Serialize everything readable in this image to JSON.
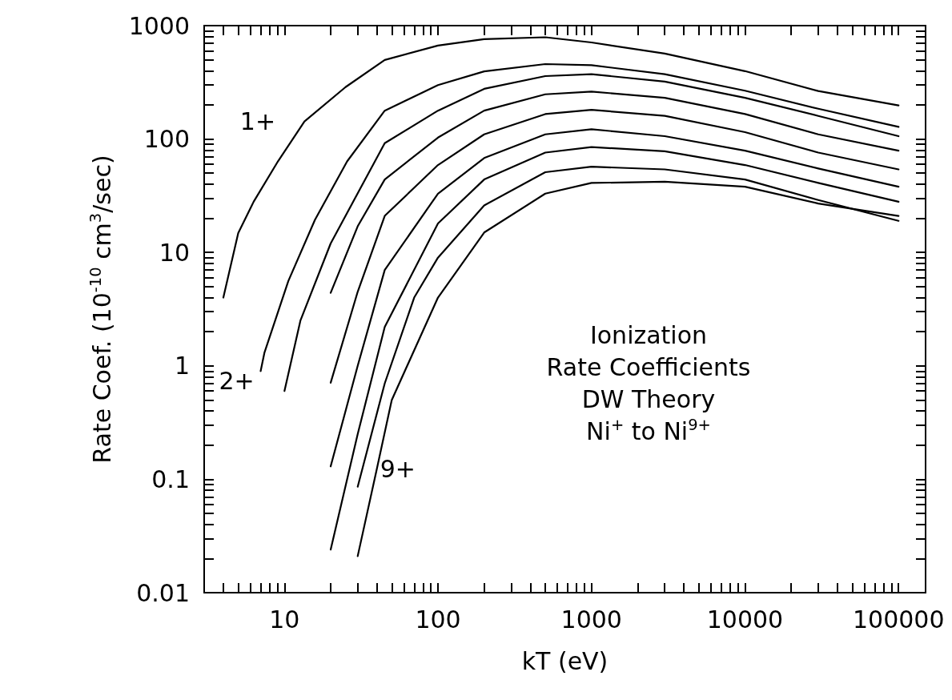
{
  "chart_data": {
    "type": "line",
    "xlabel": "kT (eV)",
    "ylabel": "Rate Coef. (10$^{-10}$ cm$^{3}$/sec)",
    "log": "xy",
    "xlim": [
      3,
      150000
    ],
    "ylim": [
      0.01,
      1000
    ],
    "xticks": [
      {
        "value": 4,
        "label": null
      },
      {
        "value": 5,
        "label": null
      },
      {
        "value": 6,
        "label": null
      },
      {
        "value": 7,
        "label": null
      },
      {
        "value": 8,
        "label": null
      },
      {
        "value": 9,
        "label": null
      },
      10,
      {
        "value": 20,
        "label": null
      },
      {
        "value": 30,
        "label": null
      },
      {
        "value": 40,
        "label": null
      },
      {
        "value": 50,
        "label": null
      },
      {
        "value": 60,
        "label": null
      },
      {
        "value": 70,
        "label": null
      },
      {
        "value": 80,
        "label": null
      },
      {
        "value": 90,
        "label": null
      },
      100,
      {
        "value": 200,
        "label": null
      },
      {
        "value": 300,
        "label": null
      },
      {
        "value": 400,
        "label": null
      },
      {
        "value": 500,
        "label": null
      },
      {
        "value": 600,
        "label": null
      },
      {
        "value": 700,
        "label": null
      },
      {
        "value": 800,
        "label": null
      },
      {
        "value": 900,
        "label": null
      },
      1000,
      {
        "value": 2000,
        "label": null
      },
      {
        "value": 3000,
        "label": null
      },
      {
        "value": 4000,
        "label": null
      },
      {
        "value": 5000,
        "label": null
      },
      {
        "value": 6000,
        "label": null
      },
      {
        "value": 7000,
        "label": null
      },
      {
        "value": 8000,
        "label": null
      },
      {
        "value": 9000,
        "label": null
      },
      10000,
      {
        "value": 20000,
        "label": null
      },
      {
        "value": 30000,
        "label": null
      },
      {
        "value": 40000,
        "label": null
      },
      {
        "value": 50000,
        "label": null
      },
      {
        "value": 60000,
        "label": null
      },
      {
        "value": 70000,
        "label": null
      },
      {
        "value": 80000,
        "label": null
      },
      {
        "value": 90000,
        "label": null
      },
      100000
    ],
    "yticks": [
      0.01,
      {
        "value": 0.02,
        "label": null
      },
      {
        "value": 0.03,
        "label": null
      },
      {
        "value": 0.04,
        "label": null
      },
      {
        "value": 0.05,
        "label": null
      },
      {
        "value": 0.06,
        "label": null
      },
      {
        "value": 0.07,
        "label": null
      },
      {
        "value": 0.08,
        "label": null
      },
      {
        "value": 0.09,
        "label": null
      },
      0.1,
      {
        "value": 0.2,
        "label": null
      },
      {
        "value": 0.3,
        "label": null
      },
      {
        "value": 0.4,
        "label": null
      },
      {
        "value": 0.5,
        "label": null
      },
      {
        "value": 0.6,
        "label": null
      },
      {
        "value": 0.7,
        "label": null
      },
      {
        "value": 0.8,
        "label": null
      },
      {
        "value": 0.9,
        "label": null
      },
      1,
      {
        "value": 2,
        "label": null
      },
      {
        "value": 3,
        "label": null
      },
      {
        "value": 4,
        "label": null
      },
      {
        "value": 5,
        "label": null
      },
      {
        "value": 6,
        "label": null
      },
      {
        "value": 7,
        "label": null
      },
      {
        "value": 8,
        "label": null
      },
      {
        "value": 9,
        "label": null
      },
      10,
      {
        "value": 20,
        "label": null
      },
      {
        "value": 30,
        "label": null
      },
      {
        "value": 40,
        "label": null
      },
      {
        "value": 50,
        "label": null
      },
      {
        "value": 60,
        "label": null
      },
      {
        "value": 70,
        "label": null
      },
      {
        "value": 80,
        "label": null
      },
      {
        "value": 90,
        "label": null
      },
      100,
      {
        "value": 200,
        "label": null
      },
      {
        "value": 300,
        "label": null
      },
      {
        "value": 400,
        "label": null
      },
      {
        "value": 500,
        "label": null
      },
      {
        "value": 600,
        "label": null
      },
      {
        "value": 700,
        "label": null
      },
      {
        "value": 800,
        "label": null
      },
      {
        "value": 900,
        "label": null
      },
      1000
    ],
    "marker": "none",
    "line_style": "solid",
    "grid": false,
    "legend": false,
    "series": [
      {
        "name": "1+",
        "color": "#000000",
        "x": [
          4,
          5,
          6.3,
          9.1,
          13.5,
          25,
          45,
          100,
          200,
          500,
          1000,
          3000,
          10000,
          30000,
          100000
        ],
        "values": [
          4,
          14.8,
          28,
          64,
          143,
          287,
          498,
          667,
          760,
          790,
          711,
          567,
          397,
          265,
          198
        ]
      },
      {
        "name": "2+",
        "color": "#000000",
        "x": [
          7,
          7.4,
          10.6,
          15.8,
          25.6,
          45,
          100,
          200,
          500,
          1000,
          3000,
          10000,
          30000,
          100000
        ],
        "values": [
          0.9,
          1.3,
          5.6,
          19.4,
          63.5,
          178,
          299,
          395,
          458,
          448,
          373,
          267,
          185,
          128
        ]
      },
      {
        "color": "#000000",
        "x": [
          10,
          12.7,
          20,
          45,
          100,
          200,
          500,
          1000,
          3000,
          10000,
          30000,
          100000
        ],
        "values": [
          0.6,
          2.5,
          12,
          92,
          178,
          277,
          359,
          373,
          321,
          231,
          160,
          106
        ]
      },
      {
        "color": "#000000",
        "x": [
          20,
          30,
          45,
          100,
          200,
          500,
          1000,
          3000,
          10000,
          30000,
          100000
        ],
        "values": [
          4.4,
          17,
          44,
          103,
          178,
          248,
          262,
          231,
          166,
          110,
          79
        ]
      },
      {
        "color": "#000000",
        "x": [
          20,
          30,
          45,
          100,
          200,
          500,
          1000,
          3000,
          10000,
          30000,
          100000
        ],
        "values": [
          0.71,
          4.5,
          21,
          59,
          110,
          166,
          181,
          160,
          115,
          76,
          54
        ]
      },
      {
        "color": "#000000",
        "x": [
          20,
          30,
          45,
          100,
          200,
          500,
          1000,
          3000,
          10000,
          30000,
          100000
        ],
        "values": [
          0.13,
          1,
          7,
          33,
          68,
          110,
          122,
          106,
          79,
          55,
          38
        ]
      },
      {
        "color": "#000000",
        "x": [
          20,
          30,
          45,
          100,
          200,
          500,
          1000,
          3000,
          10000,
          30000,
          100000
        ],
        "values": [
          0.024,
          0.25,
          2.2,
          18,
          44,
          76,
          85,
          78,
          59,
          41,
          28
        ]
      },
      {
        "color": "#000000",
        "x": [
          30,
          45,
          70,
          100,
          200,
          500,
          1000,
          3000,
          10000,
          30000,
          100000
        ],
        "values": [
          0.086,
          0.7,
          4,
          9,
          26,
          51,
          57,
          54,
          44,
          29,
          19
        ]
      },
      {
        "name": "9+",
        "color": "#000000",
        "x": [
          30,
          40,
          50,
          100,
          200,
          500,
          1000,
          3000,
          10000,
          30000,
          100000
        ],
        "values": [
          0.021,
          0.124,
          0.5,
          4,
          15,
          33,
          41,
          42,
          38,
          27,
          21
        ]
      }
    ],
    "annotations": [
      "Ionization",
      "Rate Coefficients",
      "DW Theory",
      "Ni$^{+}$ to Ni$^{9+}$"
    ]
  }
}
